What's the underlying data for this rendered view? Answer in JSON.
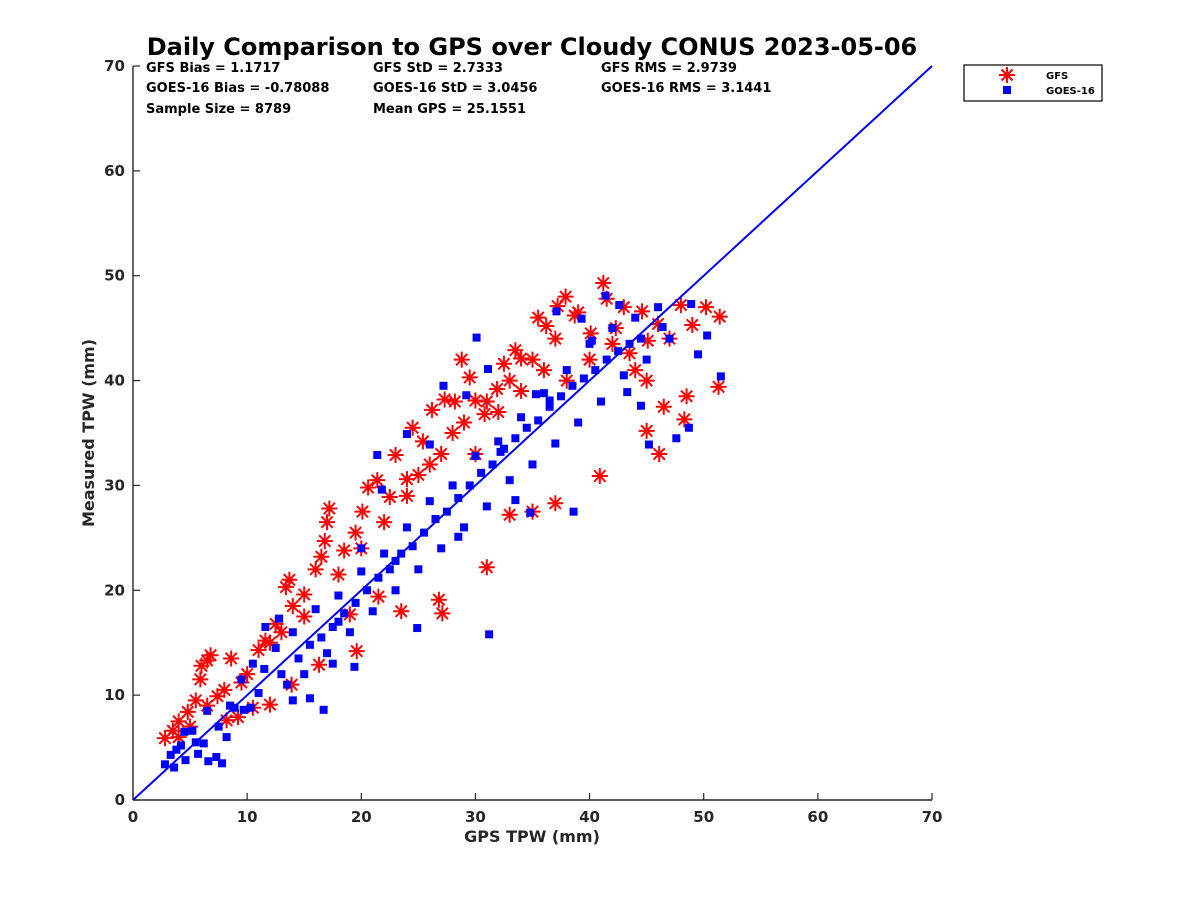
{
  "chart_data": {
    "type": "scatter",
    "title": "Daily Comparison to GPS over Cloudy CONUS 2023-05-06",
    "xlabel": "GPS TPW (mm)",
    "ylabel": "Measured TPW (mm)",
    "xlim": [
      0,
      70
    ],
    "ylim": [
      0,
      70
    ],
    "xticks": [
      "0",
      "10",
      "20",
      "30",
      "40",
      "50",
      "60",
      "70"
    ],
    "yticks": [
      "0",
      "10",
      "20",
      "30",
      "40",
      "50",
      "60",
      "70"
    ],
    "grid": false,
    "legend_position": "top-right, outside plot",
    "statistics": [
      [
        "GFS Bias = 1.1717",
        "GFS StD = 2.7333",
        "GFS RMS = 2.9739"
      ],
      [
        "GOES-16 Bias = -0.78088",
        "GOES-16 StD = 3.0456",
        "GOES-16 RMS = 3.1441"
      ],
      [
        "Sample Size = 8789",
        "Mean GPS = 25.1551",
        ""
      ]
    ],
    "reference_line": {
      "label": "1:1",
      "from": [
        0,
        0
      ],
      "to": [
        70,
        70
      ],
      "color": "#0000ff"
    },
    "series": [
      {
        "name": "GFS",
        "marker": "asterisk",
        "color": "#ff0000",
        "points": [
          [
            2.8,
            5.9
          ],
          [
            3.5,
            6.6
          ],
          [
            4.0,
            7.5
          ],
          [
            4.8,
            8.4
          ],
          [
            5.5,
            9.5
          ],
          [
            6.0,
            12.8
          ],
          [
            6.5,
            13.3
          ],
          [
            6.8,
            13.8
          ],
          [
            5.9,
            11.5
          ],
          [
            7.4,
            9.9
          ],
          [
            8.2,
            7.6
          ],
          [
            8.6,
            13.5
          ],
          [
            9.5,
            11.2
          ],
          [
            11.0,
            14.3
          ],
          [
            11.6,
            15.2
          ],
          [
            12.5,
            16.8
          ],
          [
            13.0,
            16.0
          ],
          [
            13.4,
            20.3
          ],
          [
            13.7,
            21.0
          ],
          [
            15.0,
            19.6
          ],
          [
            16.0,
            22.0
          ],
          [
            16.8,
            24.7
          ],
          [
            17.2,
            27.8
          ],
          [
            17.0,
            26.5
          ],
          [
            16.5,
            23.2
          ],
          [
            18.5,
            23.8
          ],
          [
            19.5,
            25.5
          ],
          [
            20.1,
            27.5
          ],
          [
            20.6,
            29.8
          ],
          [
            21.4,
            30.5
          ],
          [
            22.5,
            28.9
          ],
          [
            23.0,
            32.9
          ],
          [
            24.0,
            30.6
          ],
          [
            24.5,
            35.5
          ],
          [
            25.4,
            34.2
          ],
          [
            26.2,
            37.2
          ],
          [
            27.3,
            38.2
          ],
          [
            28.2,
            38.0
          ],
          [
            28.8,
            42.0
          ],
          [
            29.5,
            40.3
          ],
          [
            30.0,
            38.1
          ],
          [
            30.8,
            36.8
          ],
          [
            31.9,
            39.2
          ],
          [
            32.5,
            41.6
          ],
          [
            33.5,
            42.9
          ],
          [
            34.0,
            42.1
          ],
          [
            35.5,
            46.0
          ],
          [
            36.2,
            45.2
          ],
          [
            37.2,
            47.1
          ],
          [
            37.9,
            48.0
          ],
          [
            38.7,
            46.2
          ],
          [
            40.1,
            44.5
          ],
          [
            41.2,
            49.3
          ],
          [
            41.5,
            47.8
          ],
          [
            42.3,
            45.0
          ],
          [
            43.5,
            42.6
          ],
          [
            44.6,
            46.6
          ],
          [
            45.1,
            43.8
          ],
          [
            46.0,
            45.4
          ],
          [
            47.0,
            44.0
          ],
          [
            48.0,
            47.2
          ],
          [
            49.0,
            45.3
          ],
          [
            50.2,
            47.0
          ],
          [
            51.4,
            46.1
          ],
          [
            51.3,
            39.4
          ],
          [
            48.3,
            36.3
          ],
          [
            46.1,
            33.0
          ],
          [
            45.0,
            35.2
          ],
          [
            40.9,
            30.9
          ],
          [
            37.0,
            28.3
          ],
          [
            35.0,
            27.5
          ],
          [
            33.0,
            27.2
          ],
          [
            31.0,
            22.2
          ],
          [
            27.1,
            17.8
          ],
          [
            26.8,
            19.1
          ],
          [
            23.5,
            18.0
          ],
          [
            21.5,
            19.4
          ],
          [
            19.0,
            17.7
          ],
          [
            19.6,
            14.2
          ],
          [
            16.3,
            12.9
          ],
          [
            13.9,
            11.0
          ],
          [
            12.0,
            9.1
          ],
          [
            10.5,
            8.8
          ],
          [
            9.2,
            7.9
          ],
          [
            24.0,
            29.0
          ],
          [
            26.0,
            32.0
          ],
          [
            28.0,
            35.0
          ],
          [
            30.0,
            33.0
          ],
          [
            32.0,
            37.0
          ],
          [
            34.0,
            39.0
          ],
          [
            36.0,
            41.0
          ],
          [
            38.0,
            40.0
          ],
          [
            40.0,
            42.0
          ],
          [
            42.0,
            43.5
          ],
          [
            44.0,
            41.0
          ],
          [
            20.0,
            24.0
          ],
          [
            22.0,
            26.5
          ],
          [
            18.0,
            21.5
          ],
          [
            15.0,
            17.5
          ],
          [
            14.0,
            18.5
          ],
          [
            12.0,
            15.0
          ],
          [
            10.0,
            12.0
          ],
          [
            8.0,
            10.5
          ],
          [
            6.5,
            9.0
          ],
          [
            5.0,
            7.0
          ],
          [
            4.0,
            6.0
          ],
          [
            25.0,
            31.0
          ],
          [
            27.0,
            33.0
          ],
          [
            29.0,
            36.0
          ],
          [
            31.0,
            38.0
          ],
          [
            33.0,
            40.0
          ],
          [
            35.0,
            42.0
          ],
          [
            37.0,
            44.0
          ],
          [
            39.0,
            46.5
          ],
          [
            43.0,
            47.0
          ],
          [
            45.0,
            40.0
          ],
          [
            46.5,
            37.5
          ],
          [
            48.5,
            38.5
          ]
        ]
      },
      {
        "name": "GOES-16",
        "marker": "square",
        "color": "#0000ff",
        "points": [
          [
            2.8,
            3.4
          ],
          [
            3.3,
            4.3
          ],
          [
            3.6,
            3.1
          ],
          [
            4.2,
            5.2
          ],
          [
            4.6,
            3.8
          ],
          [
            5.2,
            6.6
          ],
          [
            5.7,
            4.4
          ],
          [
            6.2,
            5.4
          ],
          [
            6.6,
            3.7
          ],
          [
            7.3,
            4.1
          ],
          [
            7.8,
            3.5
          ],
          [
            8.2,
            6.0
          ],
          [
            8.9,
            8.8
          ],
          [
            9.7,
            8.6
          ],
          [
            10.3,
            8.8
          ],
          [
            11.0,
            10.2
          ],
          [
            11.6,
            16.5
          ],
          [
            12.8,
            17.3
          ],
          [
            14.0,
            9.5
          ],
          [
            15.5,
            9.7
          ],
          [
            16.7,
            8.6
          ],
          [
            17.5,
            13.0
          ],
          [
            18.0,
            17.0
          ],
          [
            19.4,
            12.7
          ],
          [
            20.0,
            24.0
          ],
          [
            21.4,
            32.9
          ],
          [
            21.8,
            29.6
          ],
          [
            23.0,
            22.8
          ],
          [
            24.0,
            34.9
          ],
          [
            24.9,
            16.4
          ],
          [
            26.0,
            33.9
          ],
          [
            27.2,
            39.5
          ],
          [
            28.5,
            25.1
          ],
          [
            29.2,
            38.6
          ],
          [
            30.1,
            44.1
          ],
          [
            31.2,
            15.8
          ],
          [
            31.1,
            41.1
          ],
          [
            32.2,
            33.2
          ],
          [
            33.5,
            28.6
          ],
          [
            34.8,
            27.4
          ],
          [
            35.3,
            38.7
          ],
          [
            36.5,
            38.1
          ],
          [
            37.1,
            46.6
          ],
          [
            38.6,
            27.5
          ],
          [
            39.3,
            45.9
          ],
          [
            40.2,
            43.8
          ],
          [
            41.4,
            48.1
          ],
          [
            42.6,
            47.2
          ],
          [
            43.3,
            38.9
          ],
          [
            44.5,
            37.6
          ],
          [
            45.2,
            33.9
          ],
          [
            46.4,
            45.1
          ],
          [
            47.6,
            34.5
          ],
          [
            48.7,
            35.5
          ],
          [
            48.9,
            47.3
          ],
          [
            50.3,
            44.3
          ],
          [
            51.5,
            40.4
          ],
          [
            49.5,
            42.5
          ],
          [
            13.0,
            12.0
          ],
          [
            14.5,
            13.5
          ],
          [
            15.5,
            14.8
          ],
          [
            16.5,
            15.5
          ],
          [
            17.5,
            16.5
          ],
          [
            18.5,
            17.8
          ],
          [
            19.5,
            18.8
          ],
          [
            20.5,
            20.0
          ],
          [
            21.5,
            21.2
          ],
          [
            22.5,
            22.0
          ],
          [
            23.5,
            23.5
          ],
          [
            24.5,
            24.2
          ],
          [
            25.5,
            25.5
          ],
          [
            26.5,
            26.8
          ],
          [
            27.5,
            27.5
          ],
          [
            28.5,
            28.8
          ],
          [
            29.5,
            30.0
          ],
          [
            30.5,
            31.2
          ],
          [
            31.5,
            32.0
          ],
          [
            32.5,
            33.5
          ],
          [
            33.5,
            34.5
          ],
          [
            34.5,
            35.5
          ],
          [
            35.5,
            36.2
          ],
          [
            36.5,
            37.5
          ],
          [
            37.5,
            38.5
          ],
          [
            38.5,
            39.5
          ],
          [
            39.5,
            40.2
          ],
          [
            40.5,
            41.0
          ],
          [
            41.5,
            42.0
          ],
          [
            42.5,
            42.8
          ],
          [
            43.5,
            43.5
          ],
          [
            44.5,
            44.0
          ],
          [
            12.5,
            14.5
          ],
          [
            14.0,
            16.0
          ],
          [
            16.0,
            18.2
          ],
          [
            18.0,
            19.5
          ],
          [
            20.0,
            21.8
          ],
          [
            22.0,
            23.5
          ],
          [
            24.0,
            26.0
          ],
          [
            26.0,
            28.5
          ],
          [
            28.0,
            30.0
          ],
          [
            30.0,
            32.8
          ],
          [
            32.0,
            34.2
          ],
          [
            34.0,
            36.5
          ],
          [
            36.0,
            38.8
          ],
          [
            38.0,
            41.0
          ],
          [
            40.0,
            43.5
          ],
          [
            42.0,
            45.0
          ],
          [
            11.5,
            12.5
          ],
          [
            13.5,
            11.0
          ],
          [
            15.0,
            12.0
          ],
          [
            17.0,
            14.0
          ],
          [
            19.0,
            16.0
          ],
          [
            21.0,
            18.0
          ],
          [
            23.0,
            20.0
          ],
          [
            25.0,
            22.0
          ],
          [
            27.0,
            24.0
          ],
          [
            29.0,
            26.0
          ],
          [
            31.0,
            28.0
          ],
          [
            33.0,
            30.5
          ],
          [
            35.0,
            32.0
          ],
          [
            37.0,
            34.0
          ],
          [
            39.0,
            36.0
          ],
          [
            41.0,
            38.0
          ],
          [
            43.0,
            40.5
          ],
          [
            45.0,
            42.0
          ],
          [
            47.0,
            44.0
          ],
          [
            46.0,
            47.0
          ],
          [
            44.0,
            46.0
          ],
          [
            10.5,
            13.0
          ],
          [
            9.5,
            11.5
          ],
          [
            8.5,
            9.0
          ],
          [
            7.5,
            7.0
          ],
          [
            6.5,
            8.5
          ],
          [
            5.5,
            5.5
          ],
          [
            4.5,
            6.5
          ],
          [
            3.8,
            4.8
          ]
        ]
      }
    ]
  }
}
